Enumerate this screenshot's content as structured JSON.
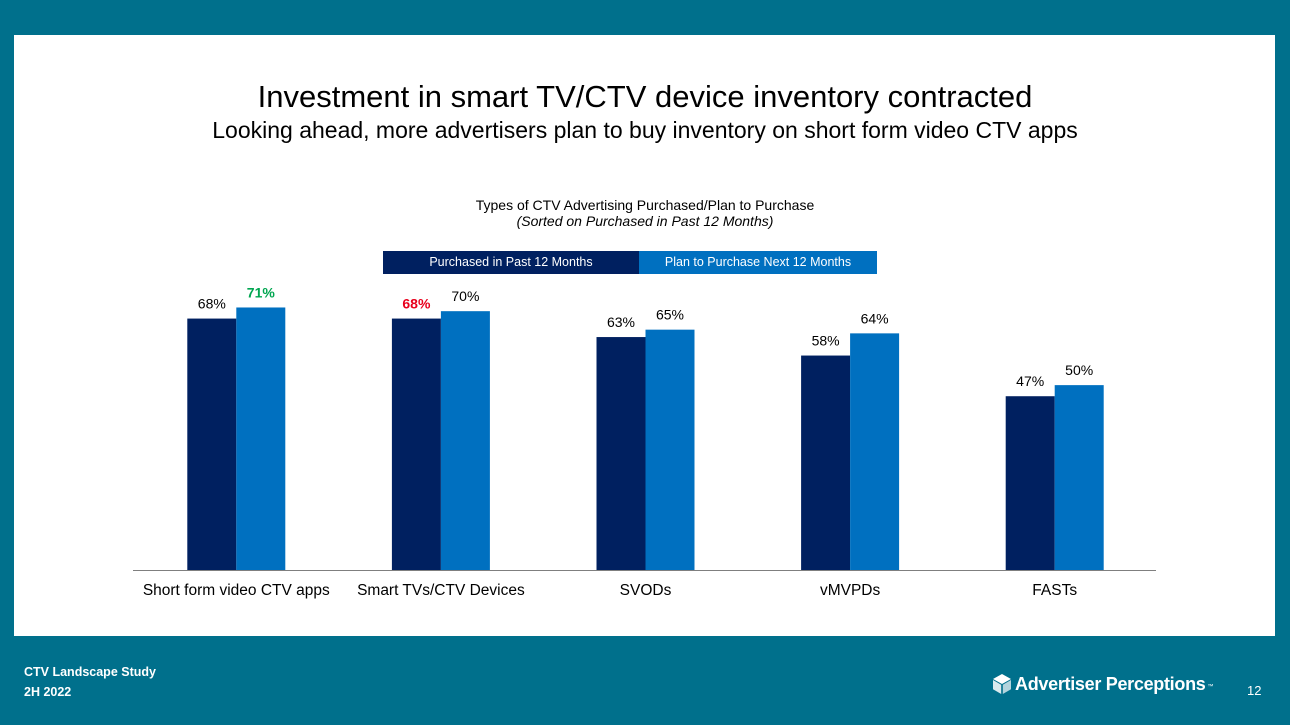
{
  "slide": {
    "title": "Investment in smart TV/CTV device inventory contracted",
    "subtitle": "Looking ahead, more advertisers plan to buy inventory on short form video CTV apps"
  },
  "footer": {
    "study": "CTV Landscape Study",
    "period": "2H 2022",
    "brand": "Advertiser Perceptions",
    "brand_mark": "™",
    "page_number": "12"
  },
  "colors": {
    "background": "#00708C",
    "series_purchased": "#002060",
    "series_plan": "#0070C0",
    "highlight_green": "#00A650",
    "highlight_red": "#E8001C"
  },
  "chart_data": {
    "type": "bar",
    "title": "Types of CTV Advertising Purchased/Plan to Purchase",
    "subtitle": "(Sorted on Purchased in Past 12 Months)",
    "categories": [
      "Short form video CTV apps",
      "Smart TVs/CTV Devices",
      "SVODs",
      "vMVPDs",
      "FASTs"
    ],
    "series": [
      {
        "name": "Purchased in Past 12 Months",
        "values": [
          68,
          68,
          63,
          58,
          47
        ],
        "color": "#002060"
      },
      {
        "name": "Plan to Purchase Next 12 Months",
        "values": [
          71,
          70,
          65,
          64,
          50
        ],
        "color": "#0070C0"
      }
    ],
    "value_suffix": "%",
    "highlighted_labels": [
      {
        "series": 1,
        "category": 0,
        "color": "#00A650"
      },
      {
        "series": 0,
        "category": 1,
        "color": "#E8001C"
      }
    ],
    "ylim": [
      0,
      80
    ],
    "grid": false,
    "legend_position": "top"
  }
}
